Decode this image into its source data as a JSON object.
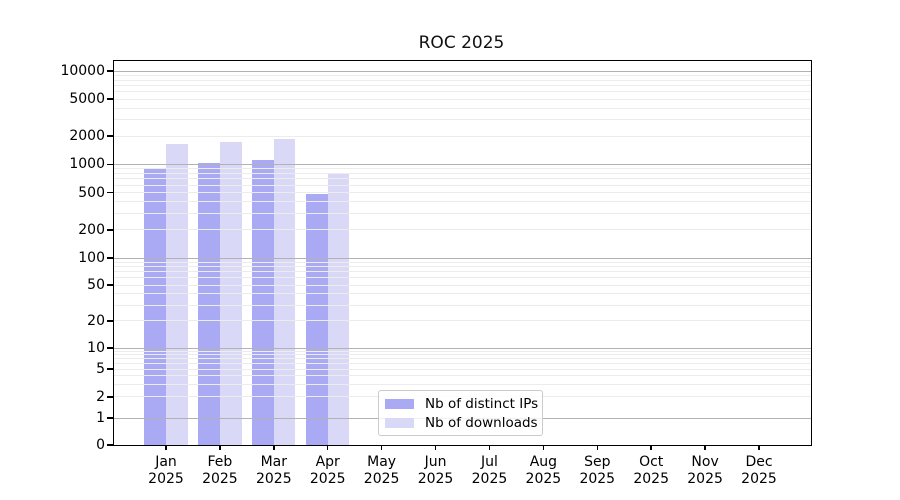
{
  "chart_data": {
    "type": "bar",
    "title": "ROC 2025",
    "xlabel": "",
    "ylabel": "",
    "scale": "log-like (linear 0-1, logarithmic 1-10000)",
    "ylim": [
      0,
      13000
    ],
    "grid": {
      "major_color": "#b2b2b2",
      "minor_color": "#ececec"
    },
    "axis_color": "#000000",
    "background": "#ffffff",
    "legend_position": "bottom-center",
    "months": [
      {
        "name": "Jan",
        "year": "2025"
      },
      {
        "name": "Feb",
        "year": "2025"
      },
      {
        "name": "Mar",
        "year": "2025"
      },
      {
        "name": "Apr",
        "year": "2025"
      },
      {
        "name": "May",
        "year": "2025"
      },
      {
        "name": "Jun",
        "year": "2025"
      },
      {
        "name": "Jul",
        "year": "2025"
      },
      {
        "name": "Aug",
        "year": "2025"
      },
      {
        "name": "Sep",
        "year": "2025"
      },
      {
        "name": "Oct",
        "year": "2025"
      },
      {
        "name": "Nov",
        "year": "2025"
      },
      {
        "name": "Dec",
        "year": "2025"
      }
    ],
    "series": [
      {
        "name": "Nb of distinct IPs",
        "color": "#a9a9f4",
        "values": [
          910,
          1020,
          1110,
          480,
          null,
          null,
          null,
          null,
          null,
          null,
          null,
          null
        ]
      },
      {
        "name": "Nb of downloads",
        "color": "#d9d9f7",
        "values": [
          1640,
          1730,
          1850,
          795,
          null,
          null,
          null,
          null,
          null,
          null,
          null,
          null
        ]
      }
    ],
    "yticks": [
      {
        "value": 0,
        "label": "0"
      },
      {
        "value": 1,
        "label": "1"
      },
      {
        "value": 2,
        "label": "2"
      },
      {
        "value": 5,
        "label": "5"
      },
      {
        "value": 10,
        "label": "10"
      },
      {
        "value": 20,
        "label": "20"
      },
      {
        "value": 50,
        "label": "50"
      },
      {
        "value": 100,
        "label": "100"
      },
      {
        "value": 200,
        "label": "200"
      },
      {
        "value": 500,
        "label": "500"
      },
      {
        "value": 1000,
        "label": "1000"
      },
      {
        "value": 2000,
        "label": "2000"
      },
      {
        "value": 5000,
        "label": "5000"
      },
      {
        "value": 10000,
        "label": "10000"
      }
    ]
  }
}
